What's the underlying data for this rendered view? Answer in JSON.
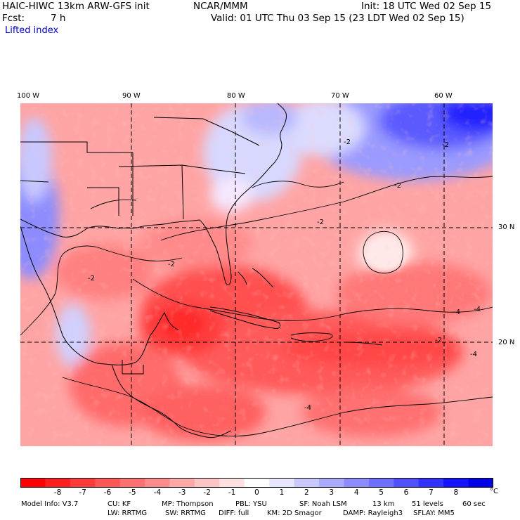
{
  "header": {
    "model_line": "HAIC-HIWC 13km ARW-GFS init",
    "org": "NCAR/MMM",
    "init": "Init: 18 UTC Wed 02 Sep 15",
    "fcst_label": "Fcst:",
    "fcst_value": "7 h",
    "valid": "Valid: 01 UTC Thu 03 Sep 15 (23 LDT Wed 02 Sep 15)",
    "field": "Lifted index"
  },
  "axes": {
    "longitudes": [
      "100 W",
      "90 W",
      "80 W",
      "70 W",
      "60 W"
    ],
    "latitudes": [
      "30 N",
      "20 N"
    ]
  },
  "map": {
    "contour_labels": [
      "-2",
      "-2",
      "-2",
      "-2",
      "-2",
      "-2",
      "-2",
      "-4",
      "-4",
      "-4",
      "-4"
    ]
  },
  "colorbar": {
    "labels": [
      "-8",
      "-7",
      "-6",
      "-5",
      "-4",
      "-3",
      "-2",
      "-1",
      "0",
      "1",
      "2",
      "3",
      "4",
      "5",
      "6",
      "7",
      "8"
    ],
    "unit": "°C",
    "colors": [
      "#ff0000",
      "#ff1e1e",
      "#ff3a3a",
      "#ff5656",
      "#ff7070",
      "#ff8c8c",
      "#ffa8a8",
      "#ffc4c4",
      "#ffe0e0",
      "#ffffff",
      "#e6e6ff",
      "#c8c8ff",
      "#aaaaff",
      "#8c8cff",
      "#6e6eff",
      "#5050ff",
      "#3232ff",
      "#1414ff",
      "#0000e6"
    ]
  },
  "footer": {
    "row1": [
      "Model Info: V3.7",
      "CU: KF",
      "MP: Thompson",
      "PBL: YSU",
      "SF: Noah LSM",
      "13 km",
      "51 levels",
      "60 sec"
    ],
    "row2": [
      "LW: RRTMG",
      "SW: RRTMG",
      "DIFF: full",
      "KM: 2D Smagor",
      "DAMP: Rayleigh3",
      "SFLAY: MM5"
    ]
  }
}
